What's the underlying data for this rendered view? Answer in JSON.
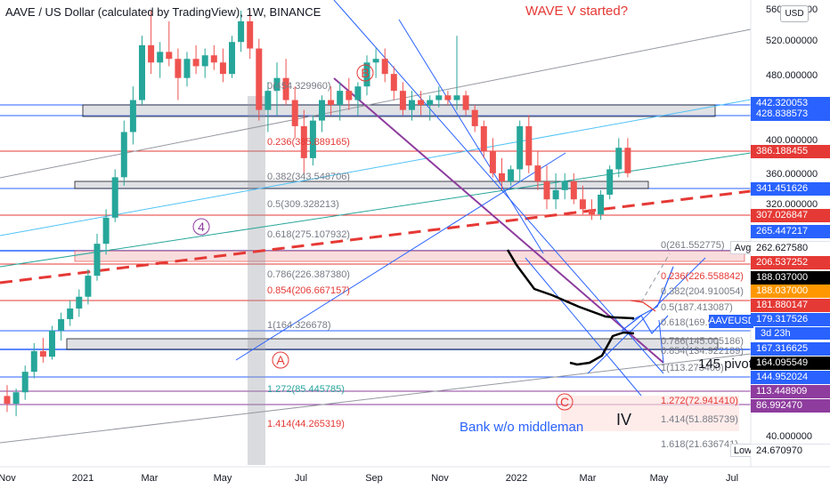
{
  "header": {
    "title": "AAVE / US Dollar (calculated by TradingView), 1W, BINANCE",
    "wave_note": "WAVE V started?",
    "currency_button": "USD"
  },
  "colors": {
    "up": "#26a69a",
    "down": "#ef5350",
    "line_blue": "#2962ff",
    "line_red": "#e53935",
    "line_purple": "#8e3c9e",
    "line_gray": "#9598a1",
    "zone_gray": "#b2b5be",
    "zone_pink": "#f5c6c6"
  },
  "annotations": {
    "wave_b": "B",
    "wave_a": "A",
    "wave_c": "C",
    "wave_4": "4",
    "wave_iv": "IV",
    "pivot": "145 pivot",
    "bank": "Bank w/o middleman",
    "fib1": [
      "0(454.329960)",
      "0.236(385.889165)",
      "0.382(343.548706)",
      "0.5(309.328213)",
      "0.618(275.107932)",
      "0.786(226.387380)",
      "0.854(206.667157)",
      "1(164.326678)",
      "1.272(85.445785)",
      "1.414(44.265319)"
    ],
    "fib2": [
      "0(261.552775)",
      "0.236(226.558842)",
      "0.382(204.910054)",
      "0.5(187.413087)",
      "0.618(169.9)",
      "0.786(145.005186)",
      "0.854(134.922189)",
      "1(113.273400)",
      "1.272(72.941410)",
      "1.414(51.885739)",
      "1.618(21.636741)"
    ]
  },
  "axis": {
    "price_ticks": [
      "560.000000",
      "520.000000",
      "480.000000",
      "400.000000",
      "360.000000",
      "320.000000",
      "40.000000"
    ],
    "time_ticks": [
      "Nov",
      "2021",
      "Mar",
      "May",
      "Jul",
      "Sep",
      "Nov",
      "2022",
      "Mar",
      "May",
      "Jul"
    ]
  },
  "price_labels": [
    {
      "text": "442.320053",
      "bg": "#2962ff",
      "fg": "#ffffff"
    },
    {
      "text": "428.838573",
      "bg": "#2962ff",
      "fg": "#ffffff"
    },
    {
      "text": "386.188455",
      "bg": "#e53935",
      "fg": "#ffffff"
    },
    {
      "text": "341.451626",
      "bg": "#2962ff",
      "fg": "#ffffff"
    },
    {
      "text": "307.026847",
      "bg": "#e53935",
      "fg": "#ffffff"
    },
    {
      "text": "265.447217",
      "bg": "#2962ff",
      "fg": "#ffffff"
    },
    {
      "text": "262.627580",
      "bg": "#ffffff",
      "fg": "#131722"
    },
    {
      "text": "206.537252",
      "bg": "#e53935",
      "fg": "#ffffff"
    },
    {
      "text": "188.037000",
      "bg": "#000000",
      "fg": "#ffffff"
    },
    {
      "text": "188.037000",
      "bg": "#ff9800",
      "fg": "#ffffff"
    },
    {
      "text": "181.880147",
      "bg": "#e53935",
      "fg": "#ffffff"
    },
    {
      "text": "179.317526",
      "bg": "#2962ff",
      "fg": "#ffffff"
    },
    {
      "text": "167.316625",
      "bg": "#2962ff",
      "fg": "#ffffff"
    },
    {
      "text": "164.095549",
      "bg": "#000000",
      "fg": "#ffffff"
    },
    {
      "text": "144.952024",
      "bg": "#2962ff",
      "fg": "#ffffff"
    },
    {
      "text": "113.448909",
      "bg": "#8e3c9e",
      "fg": "#ffffff"
    },
    {
      "text": "86.992470",
      "bg": "#8e3c9e",
      "fg": "#ffffff"
    },
    {
      "text": "24.670970",
      "bg": "#ffffff",
      "fg": "#131722"
    }
  ],
  "avg_label": "Avg",
  "low_label": "Low",
  "ticker_label": "AAVEUSD",
  "countdown": "3d 23h",
  "chart_data": {
    "type": "candlestick",
    "title": "AAVE / US Dollar (calculated by TradingView), 1W, BINANCE",
    "interval": "1W",
    "y_scale": "log",
    "ylim": [
      24.67,
      560
    ],
    "candles": [
      [
        38,
        41,
        34,
        36
      ],
      [
        36,
        40,
        33,
        39
      ],
      [
        39,
        47,
        37,
        45
      ],
      [
        45,
        55,
        43,
        52
      ],
      [
        52,
        57,
        48,
        50
      ],
      [
        50,
        62,
        49,
        60
      ],
      [
        60,
        68,
        56,
        65
      ],
      [
        65,
        74,
        62,
        70
      ],
      [
        70,
        80,
        66,
        76
      ],
      [
        76,
        92,
        72,
        88
      ],
      [
        88,
        118,
        85,
        110
      ],
      [
        110,
        140,
        102,
        132
      ],
      [
        132,
        185,
        128,
        175
      ],
      [
        175,
        260,
        165,
        240
      ],
      [
        240,
        330,
        220,
        300
      ],
      [
        300,
        470,
        290,
        440
      ],
      [
        440,
        560,
        360,
        390
      ],
      [
        390,
        450,
        350,
        420
      ],
      [
        420,
        520,
        380,
        400
      ],
      [
        400,
        430,
        300,
        350
      ],
      [
        350,
        420,
        330,
        400
      ],
      [
        400,
        440,
        360,
        380
      ],
      [
        380,
        430,
        350,
        410
      ],
      [
        410,
        440,
        370,
        390
      ],
      [
        390,
        430,
        340,
        360
      ],
      [
        360,
        470,
        350,
        450
      ],
      [
        450,
        560,
        420,
        520
      ],
      [
        520,
        560,
        400,
        430
      ],
      [
        430,
        460,
        260,
        280
      ],
      [
        280,
        340,
        240,
        320
      ],
      [
        320,
        390,
        270,
        350
      ],
      [
        350,
        400,
        290,
        300
      ],
      [
        300,
        330,
        230,
        250
      ],
      [
        250,
        280,
        180,
        200
      ],
      [
        200,
        270,
        190,
        260
      ],
      [
        260,
        310,
        240,
        300
      ],
      [
        300,
        330,
        270,
        290
      ],
      [
        290,
        340,
        260,
        320
      ],
      [
        320,
        350,
        280,
        300
      ],
      [
        300,
        340,
        270,
        330
      ],
      [
        330,
        410,
        310,
        390
      ],
      [
        390,
        430,
        350,
        400
      ],
      [
        400,
        430,
        340,
        360
      ],
      [
        360,
        380,
        300,
        320
      ],
      [
        320,
        340,
        270,
        280
      ],
      [
        280,
        320,
        260,
        300
      ],
      [
        300,
        320,
        270,
        290
      ],
      [
        290,
        310,
        260,
        300
      ],
      [
        300,
        330,
        285,
        310
      ],
      [
        310,
        320,
        290,
        300
      ],
      [
        300,
        470,
        280,
        310
      ],
      [
        310,
        320,
        270,
        280
      ],
      [
        280,
        290,
        240,
        250
      ],
      [
        250,
        260,
        200,
        210
      ],
      [
        210,
        230,
        175,
        180
      ],
      [
        180,
        200,
        160,
        170
      ],
      [
        170,
        190,
        165,
        185
      ],
      [
        185,
        260,
        170,
        250
      ],
      [
        250,
        270,
        180,
        190
      ],
      [
        190,
        210,
        160,
        170
      ],
      [
        170,
        190,
        140,
        150
      ],
      [
        150,
        180,
        140,
        160
      ],
      [
        160,
        180,
        150,
        170
      ],
      [
        170,
        180,
        145,
        150
      ],
      [
        150,
        165,
        135,
        140
      ],
      [
        140,
        150,
        130,
        135
      ],
      [
        135,
        160,
        130,
        155
      ],
      [
        155,
        190,
        150,
        185
      ],
      [
        185,
        230,
        175,
        215
      ],
      [
        215,
        230,
        175,
        180
      ]
    ]
  }
}
